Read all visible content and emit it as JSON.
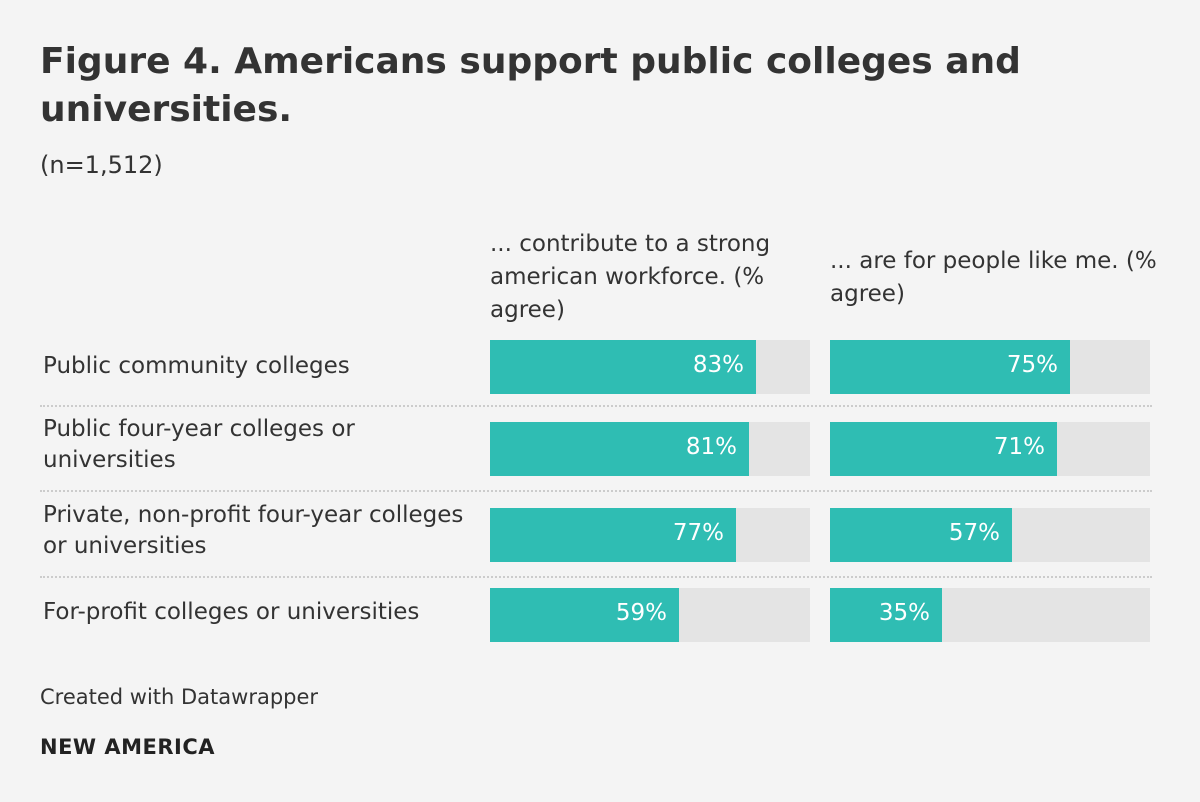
{
  "title": "Figure 4. Americans support public colleges and universities.",
  "subtitle": "(n=1,512)",
  "footer": {
    "credit": "Created with Datawrapper",
    "brand": "NEW AMERICA"
  },
  "colors": {
    "bar": "#2fbdb3",
    "track": "#e4e4e4",
    "background": "#f4f4f4"
  },
  "chart_data": {
    "type": "bar",
    "orientation": "horizontal",
    "title": "Figure 4. Americans support public colleges and universities.",
    "subtitle": "(n=1,512)",
    "xlim": [
      0,
      100
    ],
    "categories": [
      "Public community colleges",
      "Public four-year colleges or universities",
      "Private, non-profit four-year colleges or universities",
      "For-profit colleges or universities"
    ],
    "series": [
      {
        "name": "... contribute to a strong american workforce. (% agree)",
        "values": [
          83,
          81,
          77,
          59
        ],
        "labels": [
          "83%",
          "81%",
          "77%",
          "59%"
        ]
      },
      {
        "name": "... are for people like me. (% agree)",
        "values": [
          75,
          71,
          57,
          35
        ],
        "labels": [
          "75%",
          "71%",
          "57%",
          "35%"
        ]
      }
    ]
  }
}
